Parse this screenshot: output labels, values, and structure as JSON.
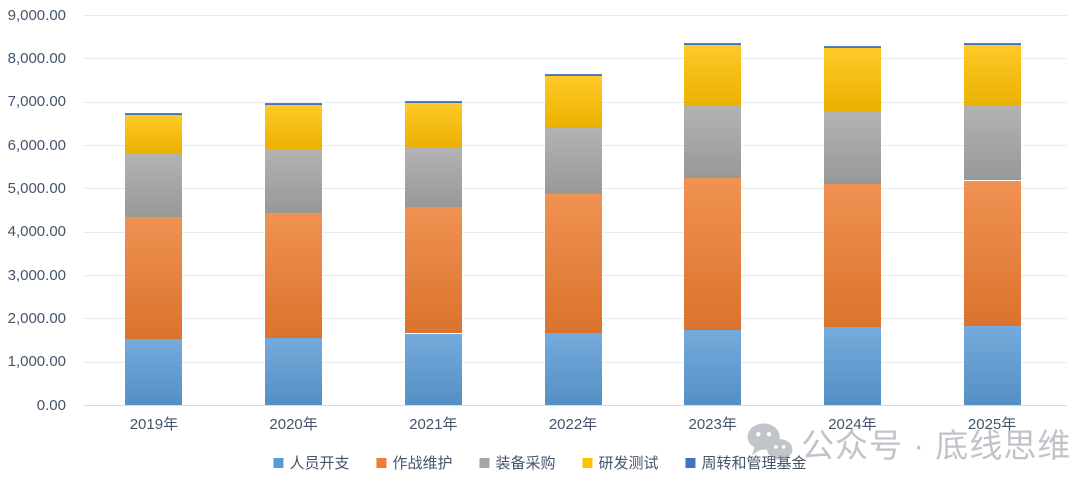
{
  "chart_data": {
    "type": "bar",
    "stacked": true,
    "categories": [
      "2019年",
      "2020年",
      "2021年",
      "2022年",
      "2023年",
      "2024年",
      "2025年"
    ],
    "series": [
      {
        "name": "人员开支",
        "color": "#5B9BD5",
        "values": [
          1530,
          1550,
          1650,
          1670,
          1740,
          1790,
          1820
        ]
      },
      {
        "name": "作战维护",
        "color": "#ED7D31",
        "values": [
          2810,
          2890,
          2910,
          3200,
          3510,
          3310,
          3360
        ]
      },
      {
        "name": "装备采购",
        "color": "#A5A5A5",
        "values": [
          1460,
          1460,
          1380,
          1520,
          1650,
          1680,
          1710
        ]
      },
      {
        "name": "研发测试",
        "color": "#FFC000",
        "values": [
          900,
          1030,
          1040,
          1200,
          1400,
          1450,
          1420
        ]
      },
      {
        "name": "周转和管理基金",
        "color": "#4472C4",
        "values": [
          20,
          20,
          20,
          20,
          20,
          20,
          20
        ]
      }
    ],
    "title": "",
    "xlabel": "",
    "ylabel": "",
    "ylim": [
      0,
      9000
    ],
    "ytick_step": 1000,
    "ytick_labels": [
      "0.00",
      "1,000.00",
      "2,000.00",
      "3,000.00",
      "4,000.00",
      "5,000.00",
      "6,000.00",
      "7,000.00",
      "8,000.00",
      "9,000.00"
    ],
    "grid": true,
    "legend_position": "bottom"
  },
  "watermark": {
    "icon": "wechat-icon",
    "text": "公众号 · 底线思维"
  },
  "style_colors": {
    "tick_label": "#44546A",
    "gridline": "#E7EBF2",
    "axis_line": "#D6DAE2",
    "watermark_gray": "#9AA0A8"
  }
}
